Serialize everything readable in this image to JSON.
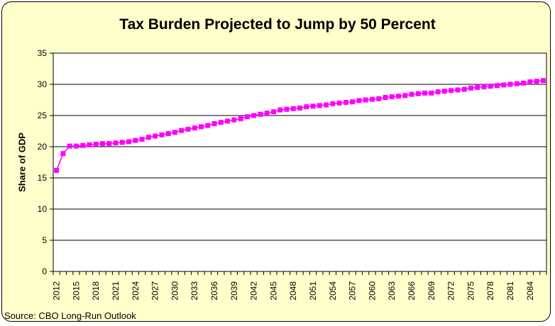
{
  "title": "Tax Burden Projected to Jump by 50 Percent",
  "source_note": "Source: CBO Long-Run Outlook",
  "colors": {
    "canvas_background": "#FFFFCC",
    "plot_background": "#FFFFFF",
    "series": "#FF00FF",
    "axis": "#000000",
    "gridline": "#000000",
    "text": "#000000",
    "frame_border": "#000000"
  },
  "chart_data": {
    "type": "line",
    "title": "Tax Burden Projected to Jump by 50 Percent",
    "xlabel": "",
    "ylabel": "Share of GDP",
    "ylim": [
      0,
      35
    ],
    "ytick_interval": 5,
    "ytick_labels": [
      "0",
      "5",
      "10",
      "15",
      "20",
      "25",
      "30",
      "35"
    ],
    "xtick_labels": [
      "2012",
      "2015",
      "2018",
      "2021",
      "2024",
      "2027",
      "2030",
      "2033",
      "2036",
      "2039",
      "2042",
      "2045",
      "2048",
      "2051",
      "2054",
      "2057",
      "2060",
      "2063",
      "2066",
      "2069",
      "2072",
      "2075",
      "2078",
      "2081",
      "2084"
    ],
    "x_label_step": 3,
    "grid": true,
    "legend": false,
    "marker": "square",
    "years": [
      2012,
      2013,
      2014,
      2015,
      2016,
      2017,
      2018,
      2019,
      2020,
      2021,
      2022,
      2023,
      2024,
      2025,
      2026,
      2027,
      2028,
      2029,
      2030,
      2031,
      2032,
      2033,
      2034,
      2035,
      2036,
      2037,
      2038,
      2039,
      2040,
      2041,
      2042,
      2043,
      2044,
      2045,
      2046,
      2047,
      2048,
      2049,
      2050,
      2051,
      2052,
      2053,
      2054,
      2055,
      2056,
      2057,
      2058,
      2059,
      2060,
      2061,
      2062,
      2063,
      2064,
      2065,
      2066,
      2067,
      2068,
      2069,
      2070,
      2071,
      2072,
      2073,
      2074,
      2075,
      2076,
      2077,
      2078,
      2079,
      2080,
      2081,
      2082,
      2083,
      2084,
      2085,
      2086
    ],
    "values": [
      16.2,
      18.9,
      20.1,
      20.1,
      20.2,
      20.3,
      20.4,
      20.5,
      20.5,
      20.6,
      20.7,
      20.8,
      21.0,
      21.2,
      21.5,
      21.7,
      21.9,
      22.1,
      22.3,
      22.6,
      22.8,
      23.0,
      23.2,
      23.4,
      23.7,
      23.9,
      24.1,
      24.3,
      24.5,
      24.8,
      25.0,
      25.2,
      25.4,
      25.6,
      25.9,
      26.0,
      26.1,
      26.2,
      26.4,
      26.5,
      26.6,
      26.7,
      26.9,
      27.0,
      27.1,
      27.2,
      27.4,
      27.5,
      27.6,
      27.7,
      27.9,
      28.0,
      28.1,
      28.2,
      28.4,
      28.5,
      28.6,
      28.6,
      28.8,
      28.9,
      29.0,
      29.1,
      29.2,
      29.4,
      29.5,
      29.6,
      29.7,
      29.8,
      29.9,
      30.0,
      30.1,
      30.2,
      30.4,
      30.5,
      30.6
    ]
  }
}
